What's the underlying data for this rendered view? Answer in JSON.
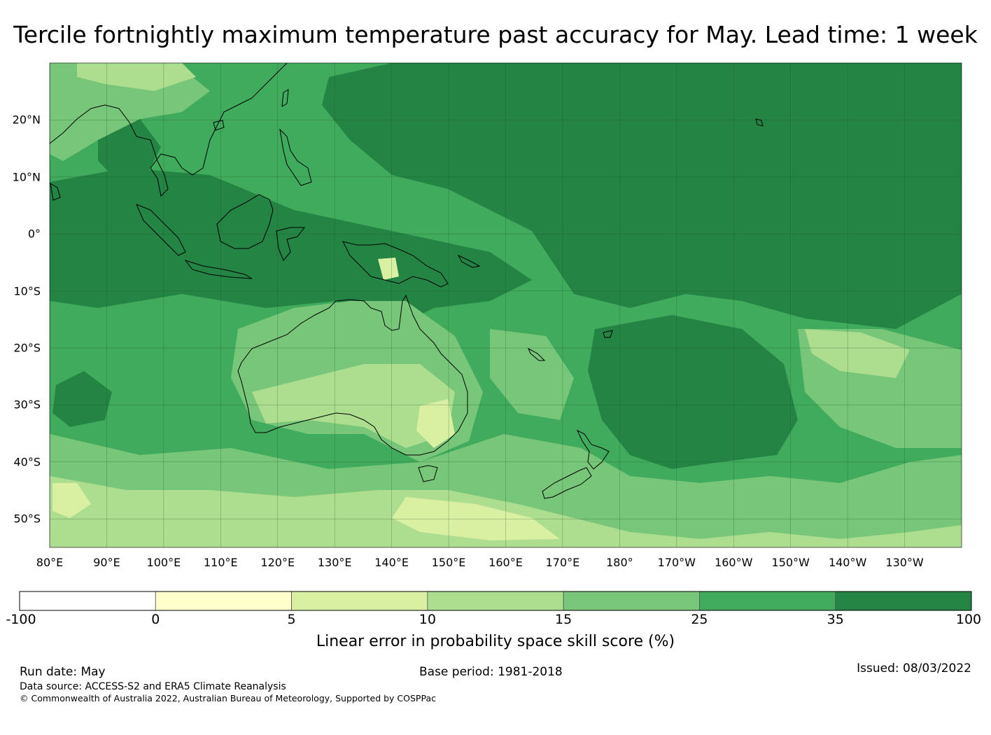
{
  "title": "Tercile fortnightly maximum temperature past accuracy for May. Lead time: 1 week",
  "map": {
    "lon_labels": [
      "80°E",
      "90°E",
      "100°E",
      "110°E",
      "120°E",
      "130°E",
      "140°E",
      "150°E",
      "160°E",
      "170°E",
      "180°",
      "170°W",
      "160°W",
      "150°W",
      "140°W",
      "130°W"
    ],
    "lat_labels": [
      "20°N",
      "10°N",
      "0°",
      "10°S",
      "20°S",
      "30°S",
      "40°S",
      "50°S"
    ],
    "lon_range": [
      80,
      240
    ],
    "lat_range": [
      -55,
      30
    ]
  },
  "colorbar": {
    "ticks": [
      "-100",
      "0",
      "5",
      "10",
      "15",
      "25",
      "35",
      "100"
    ],
    "colors": [
      "#ffffff",
      "#ffffcc",
      "#d9f0a3",
      "#addd8e",
      "#78c679",
      "#41ab5d",
      "#238443"
    ],
    "label": "Linear error in probability space skill score (%)"
  },
  "footer": {
    "run_date": "Run date: May",
    "base_period": "Base period: 1981-2018",
    "issued": "Issued: 08/03/2022",
    "data_source": "Data source: ACCESS-S2 and ERA5 Climate Reanalysis",
    "copyright": "© Commonwealth of Australia 2022, Australian Bureau of Meteorology, Supported by COSPPac"
  }
}
